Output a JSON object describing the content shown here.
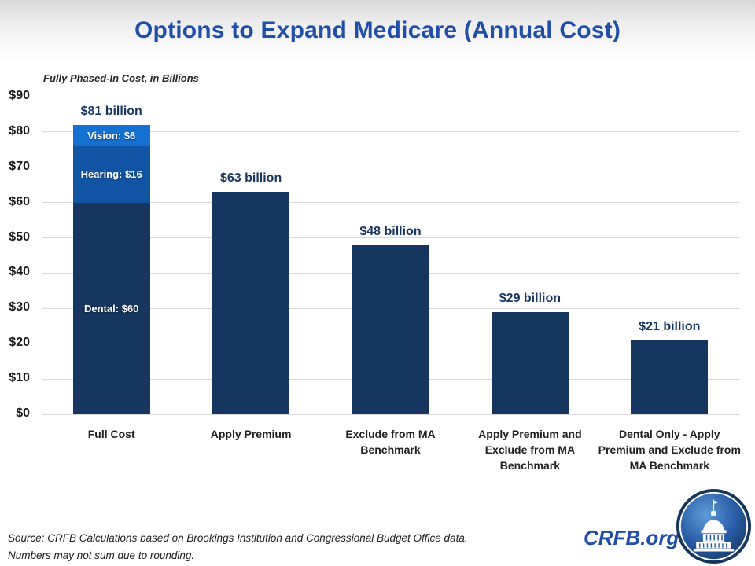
{
  "header": {
    "title": "Options to Expand Medicare (Annual Cost)"
  },
  "footer": {
    "source_line1": "Source: CRFB Calculations based on Brookings Institution and Congressional Budget Office data.",
    "source_line2": "Numbers may not sum due to rounding.",
    "brand": "CRFB.org"
  },
  "colors": {
    "title_blue": "#1F4FA8",
    "label_navy": "#17365D",
    "bar_navy": "#16365F",
    "hearing_blue": "#1254A4",
    "vision_blue": "#1470D1",
    "gridline": "#D9D9D9",
    "brand_blue": "#1F4FA8"
  },
  "chart_data": {
    "type": "bar",
    "title": "Options to Expand Medicare (Annual Cost)",
    "subtitle": "Fully Phased-In Cost, in Billions",
    "xlabel": "",
    "ylabel": "",
    "ylim": [
      0,
      90
    ],
    "ytick_labels": [
      "$0",
      "$10",
      "$20",
      "$30",
      "$40",
      "$50",
      "$60",
      "$70",
      "$80",
      "$90"
    ],
    "grid": true,
    "legend": false,
    "categories": [
      "Full Cost",
      "Apply Premium",
      "Exclude from MA Benchmark",
      "Apply Premium and Exclude from MA Benchmark",
      "Dental Only - Apply Premium and Exclude from MA Benchmark"
    ],
    "bars": [
      {
        "annotation": "$81 billion",
        "total": 81,
        "segments": [
          {
            "name": "Dental",
            "value": 60,
            "label": "Dental: $60",
            "color": "#16365F"
          },
          {
            "name": "Hearing",
            "value": 16,
            "label": "Hearing: $16",
            "color": "#1254A4"
          },
          {
            "name": "Vision",
            "value": 6,
            "label": "Vision: $6",
            "color": "#1470D1"
          }
        ]
      },
      {
        "annotation": "$63 billion",
        "total": 63,
        "segments": [
          {
            "name": "Total",
            "value": 63,
            "label": "",
            "color": "#16365F"
          }
        ]
      },
      {
        "annotation": "$48 billion",
        "total": 48,
        "segments": [
          {
            "name": "Total",
            "value": 48,
            "label": "",
            "color": "#16365F"
          }
        ]
      },
      {
        "annotation": "$29 billion",
        "total": 29,
        "segments": [
          {
            "name": "Total",
            "value": 29,
            "label": "",
            "color": "#16365F"
          }
        ]
      },
      {
        "annotation": "$21 billion",
        "total": 21,
        "segments": [
          {
            "name": "Total",
            "value": 21,
            "label": "",
            "color": "#16365F"
          }
        ]
      }
    ]
  }
}
